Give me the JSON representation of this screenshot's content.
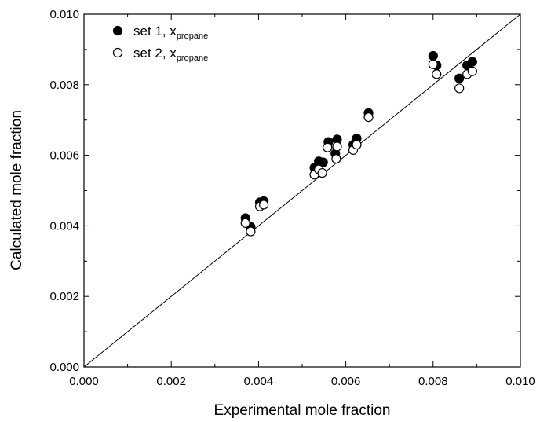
{
  "chart_data": {
    "type": "scatter",
    "title": "",
    "xlabel": "Experimental mole fraction",
    "ylabel": "Calculated mole fraction",
    "xlim": [
      0.0,
      0.01
    ],
    "ylim": [
      0.0,
      0.01
    ],
    "xticks": [
      "0.000",
      "0.002",
      "0.004",
      "0.006",
      "0.008",
      "0.010"
    ],
    "yticks": [
      "0.000",
      "0.002",
      "0.004",
      "0.006",
      "0.008",
      "0.010"
    ],
    "grid": false,
    "legend_position": "top-left",
    "reference_line": {
      "from": [
        0,
        0
      ],
      "to": [
        0.01,
        0.01
      ]
    },
    "series": [
      {
        "name": "set 1, x",
        "name_subscript": "propane",
        "marker": "filled-circle",
        "color": "#000000",
        "points": [
          [
            0.0037,
            0.00422
          ],
          [
            0.00382,
            0.00397
          ],
          [
            0.00403,
            0.00467
          ],
          [
            0.00412,
            0.0047
          ],
          [
            0.00528,
            0.00565
          ],
          [
            0.00538,
            0.00583
          ],
          [
            0.00548,
            0.0058
          ],
          [
            0.0056,
            0.00638
          ],
          [
            0.00576,
            0.00605
          ],
          [
            0.0058,
            0.00645
          ],
          [
            0.00617,
            0.0063
          ],
          [
            0.00625,
            0.00648
          ],
          [
            0.00652,
            0.0072
          ],
          [
            0.008,
            0.00882
          ],
          [
            0.00808,
            0.00855
          ],
          [
            0.0086,
            0.00818
          ],
          [
            0.00878,
            0.00855
          ],
          [
            0.0089,
            0.00865
          ]
        ]
      },
      {
        "name": "set 2, x",
        "name_subscript": "propane",
        "marker": "open-circle",
        "color": "#000000",
        "points": [
          [
            0.0037,
            0.00408
          ],
          [
            0.00382,
            0.00384
          ],
          [
            0.00403,
            0.00455
          ],
          [
            0.00412,
            0.0046
          ],
          [
            0.00528,
            0.00545
          ],
          [
            0.00538,
            0.0056
          ],
          [
            0.00546,
            0.0055
          ],
          [
            0.00558,
            0.00622
          ],
          [
            0.00578,
            0.0059
          ],
          [
            0.0058,
            0.00625
          ],
          [
            0.00617,
            0.00615
          ],
          [
            0.00625,
            0.0063
          ],
          [
            0.00652,
            0.00708
          ],
          [
            0.008,
            0.00858
          ],
          [
            0.00808,
            0.0083
          ],
          [
            0.0086,
            0.0079
          ],
          [
            0.00878,
            0.0083
          ],
          [
            0.0089,
            0.00838
          ]
        ]
      }
    ]
  }
}
